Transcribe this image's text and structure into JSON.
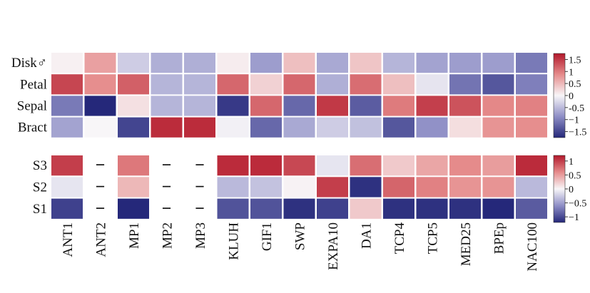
{
  "chart_data": [
    {
      "type": "heatmap",
      "rows": [
        "Disk♂",
        "Petal",
        "Sepal",
        "Bract"
      ],
      "columns": [
        "ANT1",
        "ANT2",
        "MP1",
        "MP2",
        "MP3",
        "KLUH",
        "GIF1",
        "SWP",
        "EXPA10",
        "DA1",
        "TCP4",
        "TCP5",
        "MED25",
        "BPEp",
        "NAC100"
      ],
      "values": [
        [
          0.05,
          0.7,
          -0.35,
          -0.6,
          -0.6,
          0.08,
          -0.75,
          0.45,
          -0.65,
          0.4,
          -0.55,
          -0.7,
          -0.75,
          -0.75,
          -1.05
        ],
        [
          1.4,
          0.85,
          1.2,
          -0.55,
          -0.55,
          1.15,
          0.3,
          1.15,
          -0.6,
          1.1,
          0.45,
          -0.15,
          -1.1,
          -1.35,
          -1.0
        ],
        [
          -1.05,
          -1.75,
          0.18,
          -0.55,
          -0.55,
          -1.6,
          1.15,
          -1.2,
          1.5,
          -1.3,
          1.0,
          1.45,
          1.3,
          0.9,
          0.95
        ],
        [
          -0.7,
          0.0,
          -1.5,
          1.6,
          1.6,
          -0.05,
          -1.2,
          -0.65,
          -0.35,
          -0.45,
          -1.35,
          -0.85,
          0.2,
          0.8,
          0.85
        ]
      ],
      "colorbar": {
        "ticks": [
          "1.5",
          "1",
          "0.5",
          "0",
          "-0.5",
          "−1",
          "−1.5"
        ],
        "range": [
          -1.75,
          1.75
        ]
      }
    },
    {
      "type": "heatmap",
      "rows": [
        "S3",
        "S2",
        "S1"
      ],
      "columns": [
        "ANT1",
        "ANT2",
        "MP1",
        "MP2",
        "MP3",
        "KLUH",
        "GIF1",
        "SWP",
        "EXPA10",
        "DA1",
        "TCP4",
        "TCP5",
        "MED25",
        "BPEp",
        "NAC100"
      ],
      "values": [
        [
          1.0,
          null,
          0.7,
          null,
          null,
          1.1,
          1.1,
          0.95,
          -0.1,
          0.75,
          0.25,
          0.45,
          0.6,
          0.5,
          1.1
        ],
        [
          -0.1,
          null,
          0.35,
          null,
          null,
          -0.35,
          -0.3,
          0.02,
          1.0,
          -1.15,
          0.8,
          0.65,
          0.55,
          0.55,
          -0.35
        ],
        [
          -1.05,
          null,
          -1.2,
          null,
          null,
          -0.95,
          -0.95,
          -1.15,
          -1.05,
          0.25,
          -1.15,
          -1.15,
          -1.15,
          -1.2,
          -0.9
        ]
      ],
      "missing_marker": "−",
      "colorbar": {
        "ticks": [
          "1",
          "0.5",
          "0",
          "−0.5",
          "−1"
        ],
        "range": [
          -1.2,
          1.2
        ]
      }
    }
  ]
}
